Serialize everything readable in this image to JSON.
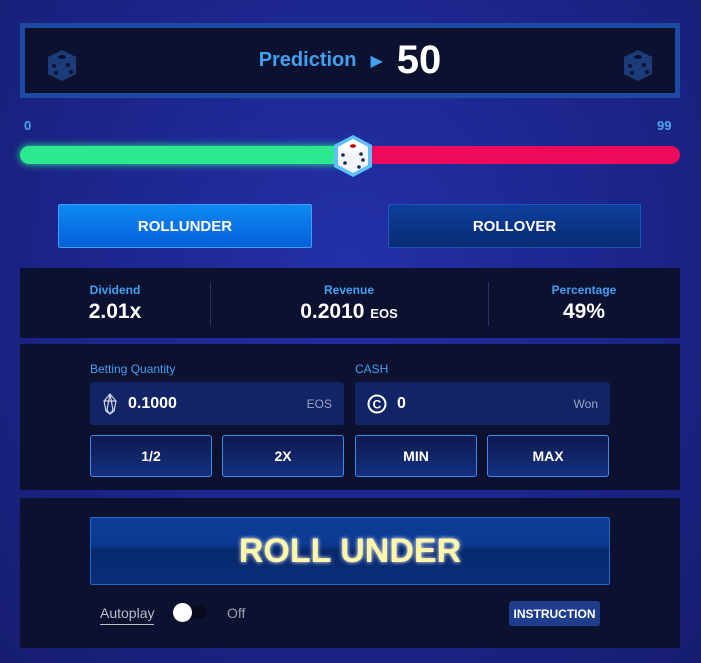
{
  "prediction": {
    "label": "Prediction",
    "value": "50"
  },
  "slider": {
    "min_label": "0",
    "max_label": "99",
    "value": 50,
    "under_color": "#2ce88f",
    "over_color": "#ee0a5a"
  },
  "mode_buttons": {
    "rollunder": "ROLLUNDER",
    "rollover": "ROLLOVER",
    "selected": "rollunder"
  },
  "stats": {
    "dividend": {
      "label": "Dividend",
      "value": "2.01x"
    },
    "revenue": {
      "label": "Revenue",
      "value": "0.2010",
      "unit": "EOS"
    },
    "percentage": {
      "label": "Percentage",
      "value": "49%"
    }
  },
  "betting": {
    "label": "Betting Quantity",
    "value": "0.1000",
    "unit": "EOS",
    "icon": "eos-icon"
  },
  "cash": {
    "label": "CASH",
    "value": "0",
    "unit": "Won",
    "icon": "coin-c-icon"
  },
  "quick_buttons": [
    "1/2",
    "2X",
    "MIN",
    "MAX"
  ],
  "roll_button": "ROLL UNDER",
  "autoplay": {
    "label": "Autoplay",
    "state": "Off"
  },
  "instruction": "INSTRUCTION"
}
